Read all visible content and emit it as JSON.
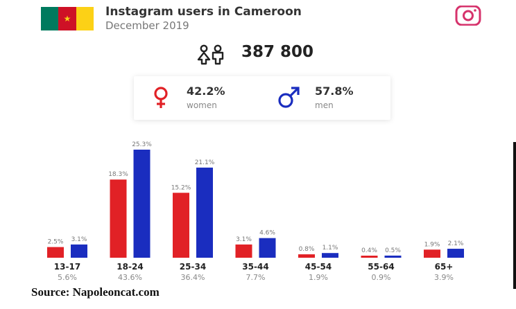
{
  "header": {
    "title": "Instagram users in Cameroon",
    "subtitle": "December 2019",
    "total_users": "387 800",
    "flag_colors": [
      "#007a5e",
      "#ce1126",
      "#fcd116"
    ],
    "icons": [
      "cameroon-flag",
      "instagram-icon",
      "users-icon",
      "female-icon",
      "male-icon"
    ]
  },
  "gender": {
    "women": {
      "value": "42.2%",
      "label": "women",
      "color": "#e12126"
    },
    "men": {
      "value": "57.8%",
      "label": "men",
      "color": "#1a2dbf"
    }
  },
  "chart_data": {
    "type": "bar",
    "categories": [
      "13-17",
      "18-24",
      "25-34",
      "35-44",
      "45-54",
      "55-64",
      "65+"
    ],
    "category_share": [
      "5.6%",
      "43.6%",
      "36.4%",
      "7.7%",
      "1.9%",
      "0.9%",
      "3.9%"
    ],
    "series": [
      {
        "values": [
          2.5,
          18.3,
          15.2,
          3.1,
          0.8,
          0.4,
          1.9
        ],
        "labels": [
          "2.5%",
          "18.3%",
          "15.2%",
          "3.1%",
          "0.8%",
          "0.4%",
          "1.9%"
        ],
        "color": "#e12126"
      },
      {
        "values": [
          3.1,
          25.3,
          21.1,
          4.6,
          1.1,
          0.5,
          2.1
        ],
        "labels": [
          "3.1%",
          "25.3%",
          "21.1%",
          "4.6%",
          "1.1%",
          "0.5%",
          "2.1%"
        ],
        "color": "#1a2dbf"
      }
    ],
    "ylim": [
      0,
      25.3
    ],
    "grid": false
  },
  "source": "Source: Napoleoncat.com"
}
